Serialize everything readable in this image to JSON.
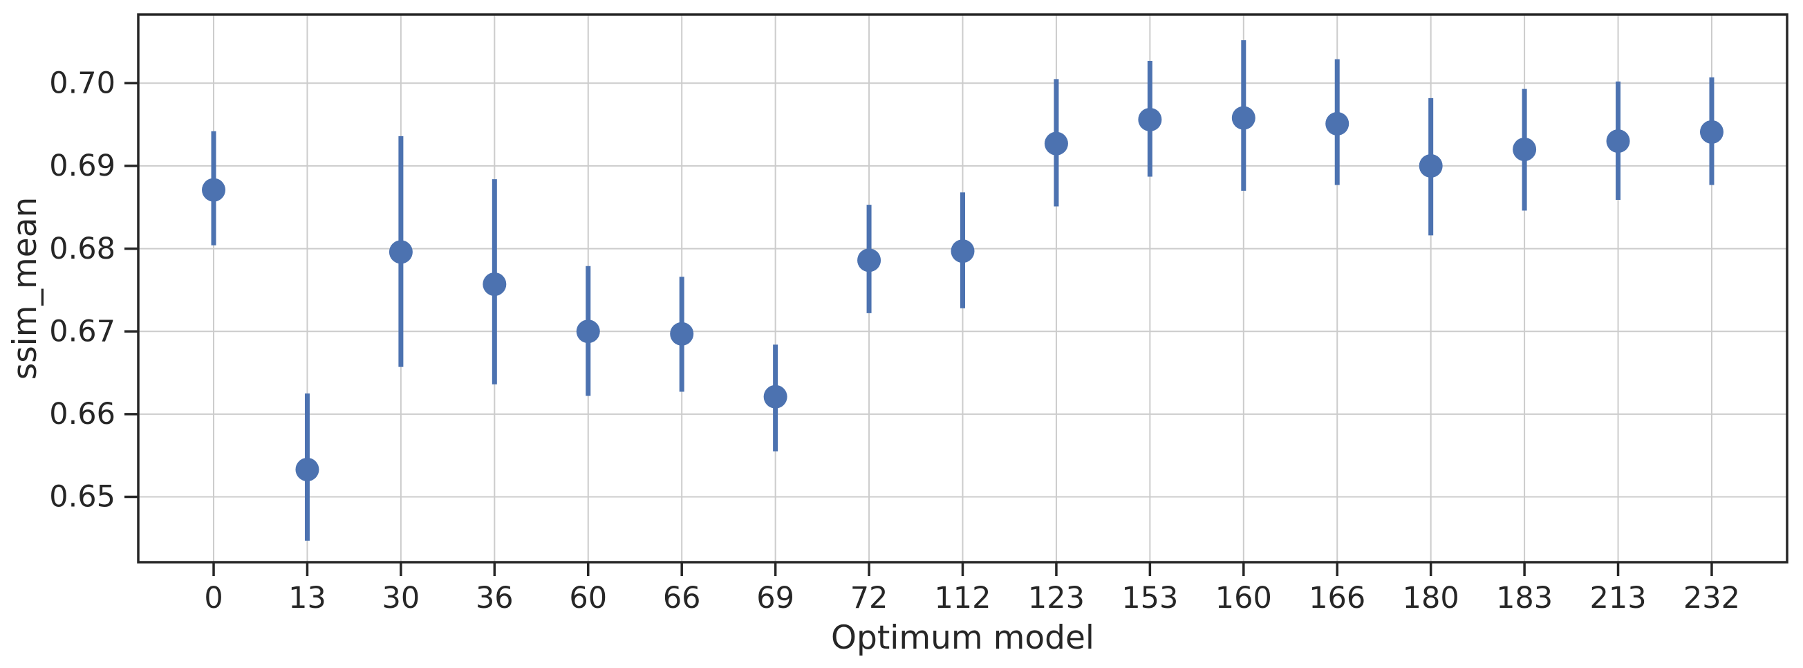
{
  "chart_data": {
    "type": "scatter",
    "subtype": "pointplot-with-error-bars",
    "title": "",
    "xlabel": "Optimum model",
    "ylabel": "ssim_mean",
    "categories": [
      "0",
      "13",
      "30",
      "36",
      "60",
      "66",
      "69",
      "72",
      "112",
      "123",
      "153",
      "160",
      "166",
      "180",
      "183",
      "213",
      "232"
    ],
    "points": [
      {
        "label": "0",
        "mean": 0.6871,
        "ci_low": 0.6804,
        "ci_high": 0.6942
      },
      {
        "label": "13",
        "mean": 0.6533,
        "ci_low": 0.6447,
        "ci_high": 0.6625
      },
      {
        "label": "30",
        "mean": 0.6796,
        "ci_low": 0.6657,
        "ci_high": 0.6936
      },
      {
        "label": "36",
        "mean": 0.6757,
        "ci_low": 0.6636,
        "ci_high": 0.6884
      },
      {
        "label": "60",
        "mean": 0.67,
        "ci_low": 0.6622,
        "ci_high": 0.6779
      },
      {
        "label": "66",
        "mean": 0.6697,
        "ci_low": 0.6627,
        "ci_high": 0.6766
      },
      {
        "label": "69",
        "mean": 0.6621,
        "ci_low": 0.6555,
        "ci_high": 0.6684
      },
      {
        "label": "72",
        "mean": 0.6786,
        "ci_low": 0.6722,
        "ci_high": 0.6853
      },
      {
        "label": "112",
        "mean": 0.6797,
        "ci_low": 0.6728,
        "ci_high": 0.6868
      },
      {
        "label": "123",
        "mean": 0.6927,
        "ci_low": 0.6851,
        "ci_high": 0.7005
      },
      {
        "label": "153",
        "mean": 0.6956,
        "ci_low": 0.6887,
        "ci_high": 0.7027
      },
      {
        "label": "160",
        "mean": 0.6958,
        "ci_low": 0.687,
        "ci_high": 0.7052
      },
      {
        "label": "166",
        "mean": 0.6951,
        "ci_low": 0.6877,
        "ci_high": 0.7029
      },
      {
        "label": "180",
        "mean": 0.69,
        "ci_low": 0.6816,
        "ci_high": 0.6982
      },
      {
        "label": "183",
        "mean": 0.692,
        "ci_low": 0.6846,
        "ci_high": 0.6993
      },
      {
        "label": "213",
        "mean": 0.693,
        "ci_low": 0.6859,
        "ci_high": 0.7002
      },
      {
        "label": "232",
        "mean": 0.6941,
        "ci_low": 0.6877,
        "ci_high": 0.7007
      }
    ],
    "y_ticks": [
      0.65,
      0.66,
      0.67,
      0.68,
      0.69,
      0.7
    ],
    "y_tick_labels": [
      "0.65",
      "0.66",
      "0.67",
      "0.68",
      "0.69",
      "0.70"
    ],
    "ylim": [
      0.6421,
      0.7083
    ],
    "grid": true,
    "legend": "none",
    "colors": {
      "point": "#4C72B0",
      "error_bar": "#4C72B0",
      "grid": "#cccccc",
      "spine": "#262626",
      "text": "#262626",
      "background": "#ffffff"
    }
  }
}
